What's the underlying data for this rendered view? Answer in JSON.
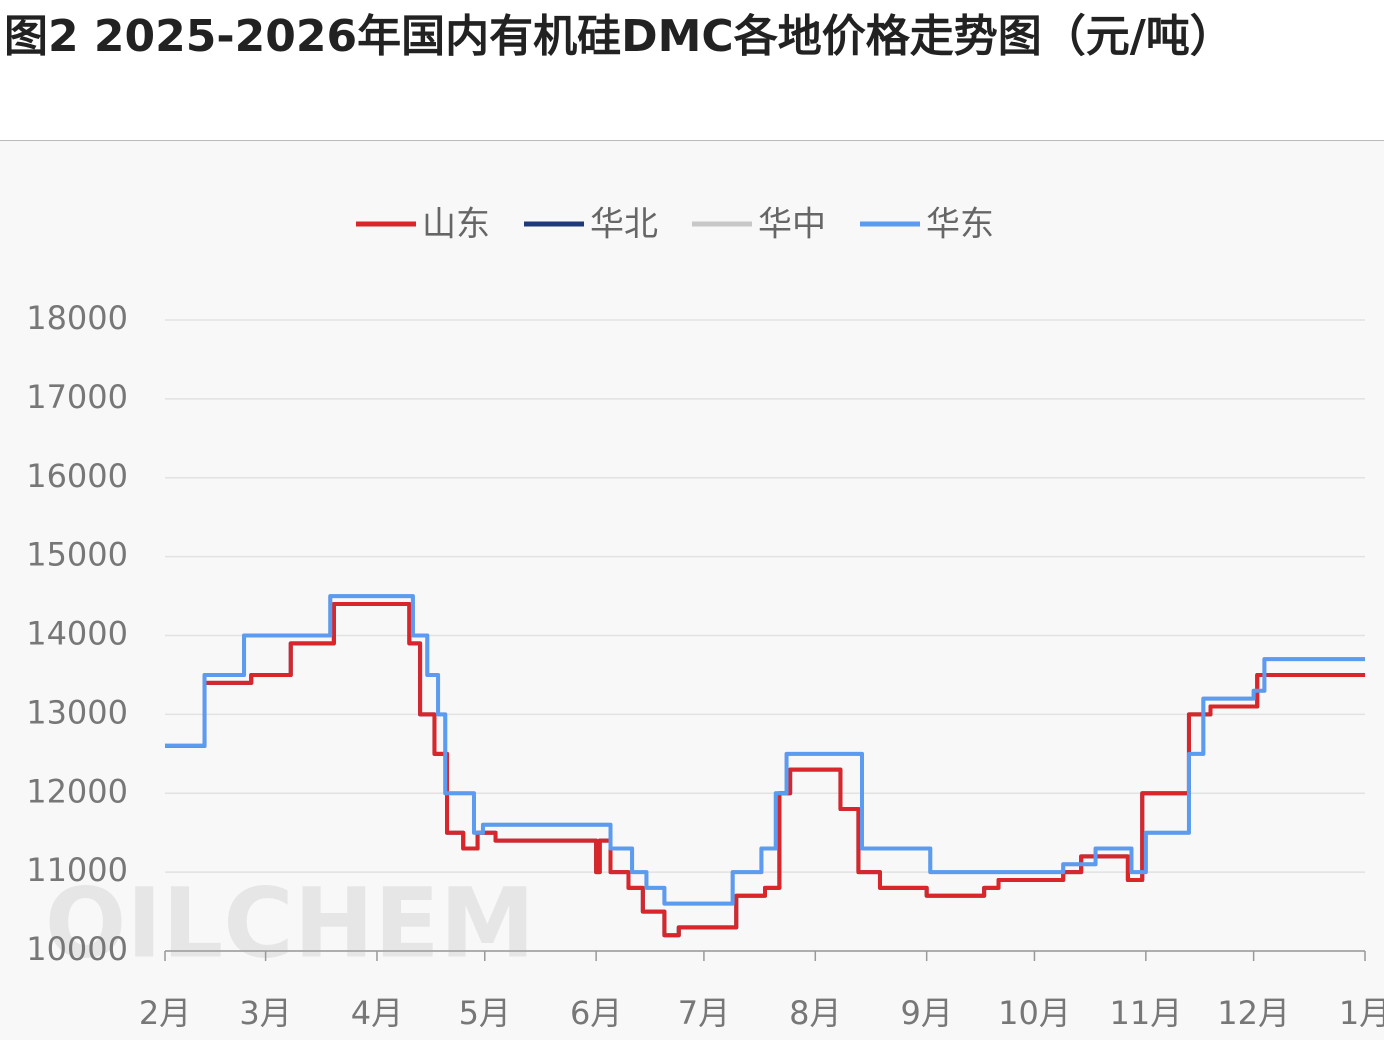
{
  "chart_data": {
    "type": "line",
    "title": "图2  2025-2026年国内有机硅DMC各地价格走势图（元/吨）",
    "watermark": "OILCHEM",
    "xlim": [
      0,
      334
    ],
    "xticks": [
      {
        "value": 0,
        "label": "2月"
      },
      {
        "value": 28,
        "label": "3月"
      },
      {
        "value": 59,
        "label": "4月"
      },
      {
        "value": 89,
        "label": "5月"
      },
      {
        "value": 120,
        "label": "6月"
      },
      {
        "value": 150,
        "label": "7月"
      },
      {
        "value": 181,
        "label": "8月"
      },
      {
        "value": 212,
        "label": "9月"
      },
      {
        "value": 242,
        "label": "10月"
      },
      {
        "value": 273,
        "label": "11月"
      },
      {
        "value": 303,
        "label": "12月"
      },
      {
        "value": 334,
        "label": "1月"
      }
    ],
    "ylim": [
      10000,
      18000
    ],
    "yticks": [
      10000,
      11000,
      12000,
      13000,
      14000,
      15000,
      16000,
      17000,
      18000
    ],
    "grid": true,
    "legend": "top",
    "series": [
      {
        "name": "山东",
        "color": "#d9262a",
        "x": [
          0,
          11,
          11,
          24,
          24,
          35,
          35,
          47,
          47,
          68,
          68,
          71,
          71,
          75,
          75,
          78.5,
          78.5,
          83,
          83,
          87,
          87,
          92,
          92,
          120,
          120,
          121,
          121,
          124,
          124,
          129,
          129,
          133,
          133,
          139,
          139,
          143,
          143,
          159,
          159,
          167,
          167,
          171,
          171,
          174,
          174,
          188,
          188,
          193,
          193,
          199,
          199,
          212,
          212,
          228,
          228,
          232,
          232,
          250,
          250,
          255,
          255,
          268,
          268,
          272,
          272,
          285,
          285,
          291,
          291,
          304,
          304,
          334
        ],
        "values": [
          12600,
          12600,
          13400,
          13400,
          13500,
          13500,
          13900,
          13900,
          14400,
          14400,
          13900,
          13900,
          13000,
          13000,
          12500,
          12500,
          11500,
          11500,
          11300,
          11300,
          11500,
          11500,
          11400,
          11400,
          11000,
          11000,
          11400,
          11400,
          11000,
          11000,
          10800,
          10800,
          10500,
          10500,
          10200,
          10200,
          10300,
          10300,
          10700,
          10700,
          10800,
          10800,
          12000,
          12000,
          12300,
          12300,
          11800,
          11800,
          11000,
          11000,
          10800,
          10800,
          10700,
          10700,
          10800,
          10800,
          10900,
          10900,
          11000,
          11000,
          11200,
          11200,
          10900,
          10900,
          12000,
          12000,
          13000,
          13000,
          13100,
          13100,
          13500,
          13500
        ]
      },
      {
        "name": "华北",
        "color": "#1f3a7a",
        "x": [
          0,
          11,
          11,
          24,
          24,
          35,
          35,
          47,
          47,
          68,
          68,
          71,
          71,
          75,
          75,
          78.5,
          78.5,
          83,
          83,
          87,
          87,
          92,
          92,
          120,
          120,
          121,
          121,
          124,
          124,
          129,
          129,
          133,
          133,
          139,
          139,
          143,
          143,
          159,
          159,
          167,
          167,
          171,
          171,
          174,
          174,
          188,
          188,
          193,
          193,
          199,
          199,
          212,
          212,
          228,
          228,
          232,
          232,
          250,
          250,
          255,
          255,
          268,
          268,
          272,
          272,
          285,
          285,
          291,
          291,
          304,
          304,
          334
        ],
        "values": [
          12600,
          12600,
          13400,
          13400,
          13500,
          13500,
          13900,
          13900,
          14400,
          14400,
          13900,
          13900,
          13000,
          13000,
          12500,
          12500,
          11500,
          11500,
          11300,
          11300,
          11500,
          11500,
          11400,
          11400,
          11000,
          11000,
          11400,
          11400,
          11000,
          11000,
          10800,
          10800,
          10500,
          10500,
          10200,
          10200,
          10300,
          10300,
          10700,
          10700,
          10800,
          10800,
          12000,
          12000,
          12300,
          12300,
          11800,
          11800,
          11000,
          11000,
          10800,
          10800,
          10700,
          10700,
          10800,
          10800,
          10900,
          10900,
          11000,
          11000,
          11200,
          11200,
          10900,
          10900,
          12000,
          12000,
          13000,
          13000,
          13100,
          13100,
          13500,
          13500
        ]
      },
      {
        "name": "华中",
        "color": "#c8c8c8",
        "x": [
          0,
          11,
          11,
          22,
          22,
          46,
          46,
          69,
          69,
          73,
          73,
          76,
          76,
          78,
          78,
          86,
          86,
          88.5,
          88.5,
          124,
          124,
          130,
          130,
          134,
          134,
          139,
          139,
          158,
          158,
          166,
          166,
          170,
          170,
          173,
          173,
          194,
          194,
          213,
          213,
          250,
          250,
          259,
          259,
          269,
          269,
          273,
          273,
          285,
          285,
          289,
          289,
          303,
          303,
          306,
          306,
          334
        ],
        "values": [
          12600,
          12600,
          13500,
          13500,
          14000,
          14000,
          14500,
          14500,
          14000,
          14000,
          13500,
          13500,
          13000,
          13000,
          12000,
          12000,
          11500,
          11500,
          11600,
          11600,
          11300,
          11300,
          11000,
          11000,
          10800,
          10800,
          10600,
          10600,
          11000,
          11000,
          11300,
          11300,
          12000,
          12000,
          12500,
          12500,
          11300,
          11300,
          11000,
          11000,
          11100,
          11100,
          11300,
          11300,
          11000,
          11000,
          11500,
          11500,
          12500,
          12500,
          13200,
          13200,
          13300,
          13300,
          13700,
          13700
        ]
      },
      {
        "name": "华东",
        "color": "#5b9bf0",
        "x": [
          0,
          11,
          11,
          22,
          22,
          46,
          46,
          69,
          69,
          73,
          73,
          76,
          76,
          78,
          78,
          86,
          86,
          88.5,
          88.5,
          124,
          124,
          130,
          130,
          134,
          134,
          139,
          139,
          158,
          158,
          166,
          166,
          170,
          170,
          173,
          173,
          194,
          194,
          213,
          213,
          250,
          250,
          259,
          259,
          269,
          269,
          273,
          273,
          285,
          285,
          289,
          289,
          303,
          303,
          306,
          306,
          334
        ],
        "values": [
          12600,
          12600,
          13500,
          13500,
          14000,
          14000,
          14500,
          14500,
          14000,
          14000,
          13500,
          13500,
          13000,
          13000,
          12000,
          12000,
          11500,
          11500,
          11600,
          11600,
          11300,
          11300,
          11000,
          11000,
          10800,
          10800,
          10600,
          10600,
          11000,
          11000,
          11300,
          11300,
          12000,
          12000,
          12500,
          12500,
          11300,
          11300,
          11000,
          11000,
          11100,
          11100,
          11300,
          11300,
          11000,
          11000,
          11500,
          11500,
          12500,
          12500,
          13200,
          13200,
          13300,
          13300,
          13700,
          13700
        ]
      }
    ]
  }
}
